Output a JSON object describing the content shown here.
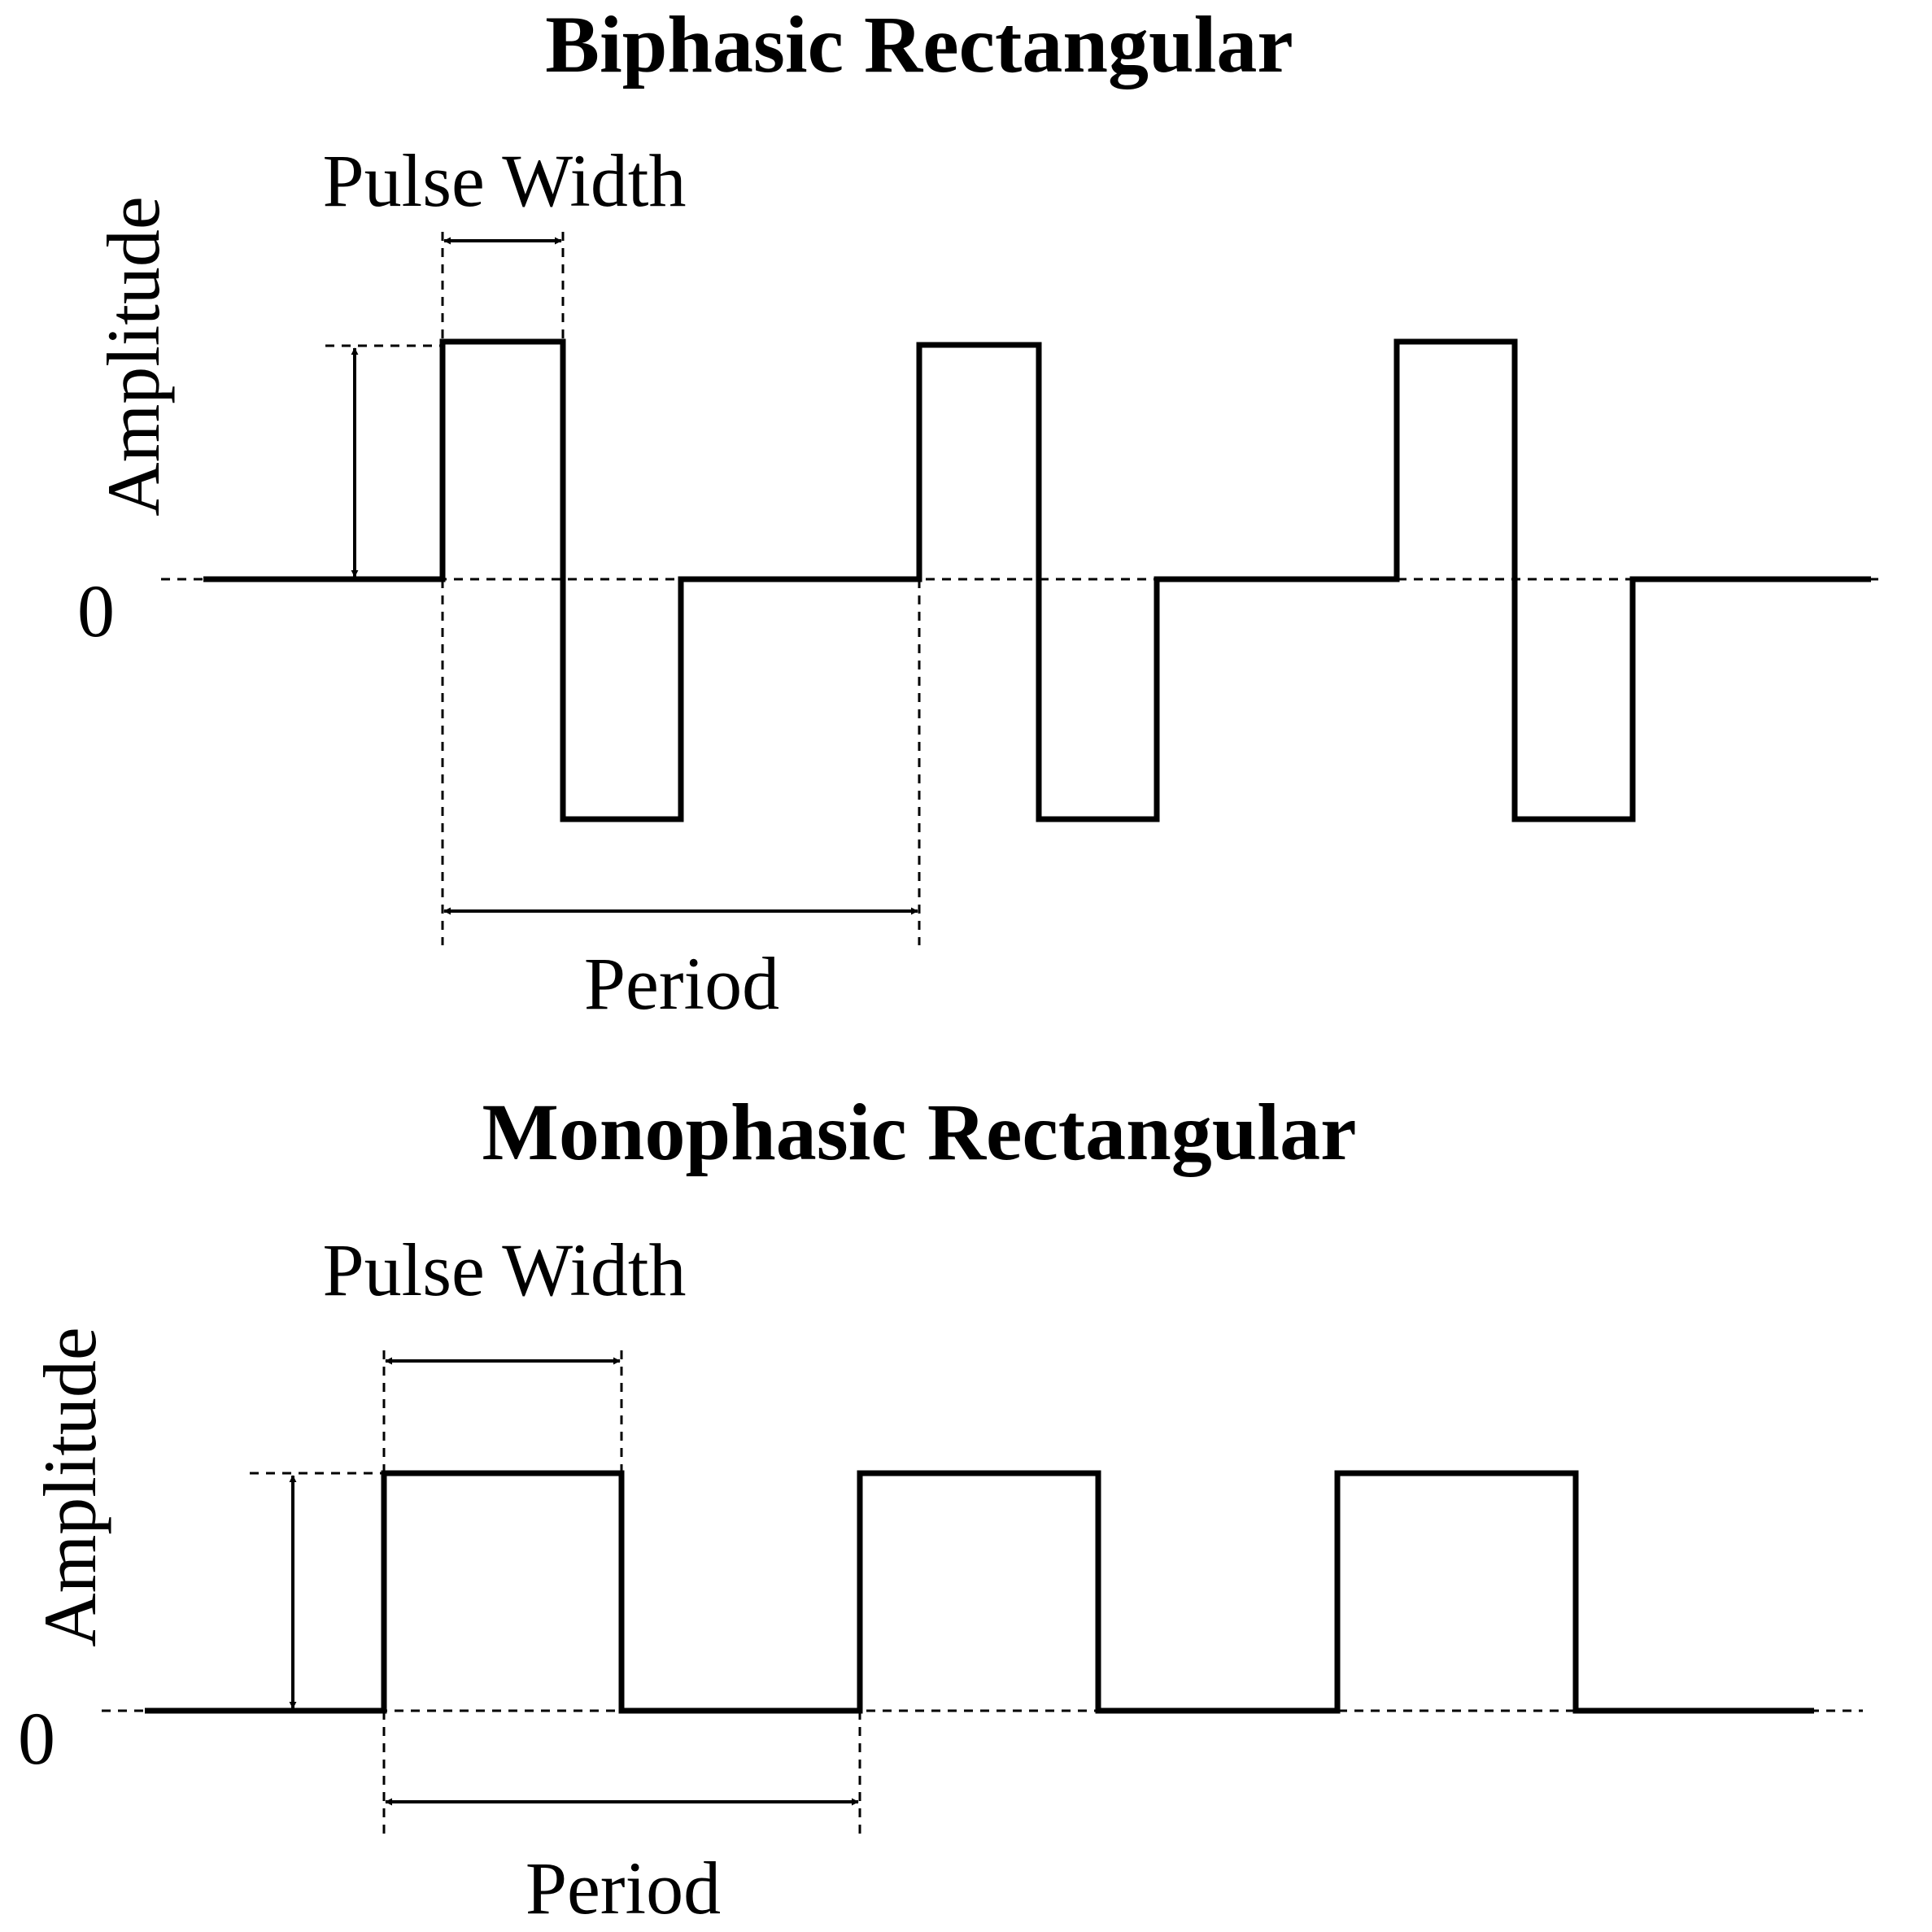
{
  "biphasic": {
    "title": "Biphasic Rectangular",
    "pulse_width_label": "Pulse Width",
    "amplitude_label": "Amplitude",
    "zero_label": "0",
    "period_label": "Period"
  },
  "monophasic": {
    "title": "Monophasic Rectangular",
    "pulse_width_label": "Pulse Width",
    "amplitude_label": "Amplitude",
    "zero_label": "0",
    "period_label": "Period"
  },
  "colors": {
    "stroke": "#000000",
    "background": "#ffffff"
  }
}
